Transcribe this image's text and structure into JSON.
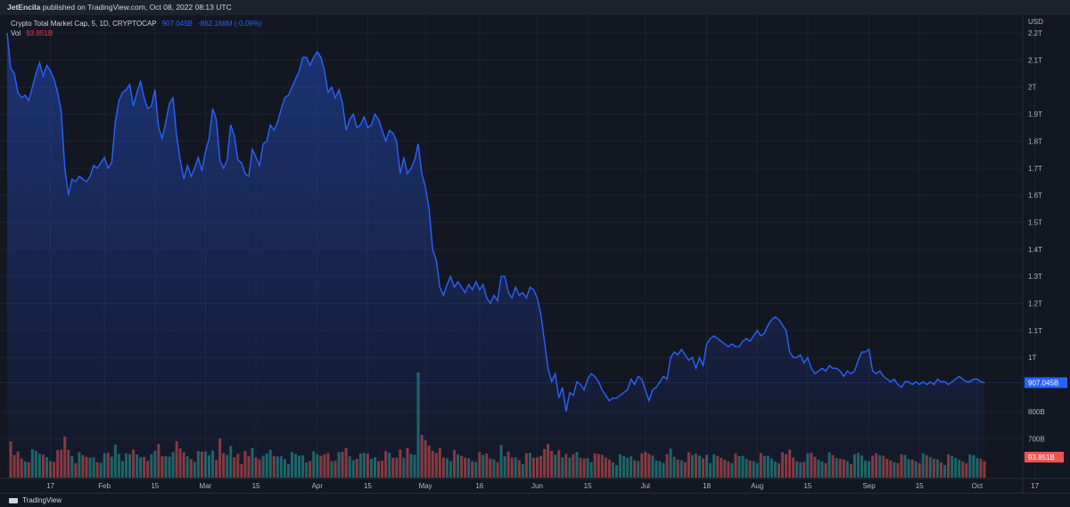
{
  "header": {
    "author": "JetEncila",
    "published_text": "published on TradingView.com, Oct 08, 2022 08:13 UTC"
  },
  "legend": {
    "symbol": "Crypto Total Market Cap, 5, 1D, CRYPTOCAP",
    "price": "907.045B",
    "change": "-862.166M (-0.09%)",
    "vol_label": "Vol",
    "vol_value": "93.851B"
  },
  "footer": {
    "brand": "TradingView"
  },
  "colors": {
    "line": "#2962ff",
    "up": "#26a69a",
    "down": "#ef5350",
    "bg": "#131722",
    "grid": "#1e222d",
    "axis_text": "#b2b5be"
  },
  "chart_data": {
    "type": "area",
    "currency": "USD",
    "y_ticks": [
      "2.3T",
      "2.2T",
      "2.1T",
      "2T",
      "1.9T",
      "1.8T",
      "1.7T",
      "1.6T",
      "1.5T",
      "1.4T",
      "1.3T",
      "1.2T",
      "1.1T",
      "1T",
      "800B",
      "700B"
    ],
    "ylim": [
      0.7,
      2.33
    ],
    "x_ticks": [
      {
        "label": "17",
        "day": 0
      },
      {
        "label": "Feb",
        "day": 15
      },
      {
        "label": "15",
        "day": 29
      },
      {
        "label": "Mar",
        "day": 43
      },
      {
        "label": "15",
        "day": 57
      },
      {
        "label": "Apr",
        "day": 74
      },
      {
        "label": "15",
        "day": 88
      },
      {
        "label": "May",
        "day": 104
      },
      {
        "label": "16",
        "day": 119
      },
      {
        "label": "Jun",
        "day": 135
      },
      {
        "label": "15",
        "day": 149
      },
      {
        "label": "Jul",
        "day": 165
      },
      {
        "label": "18",
        "day": 182
      },
      {
        "label": "Aug",
        "day": 196
      },
      {
        "label": "15",
        "day": 210
      },
      {
        "label": "Sep",
        "day": 227
      },
      {
        "label": "15",
        "day": 241
      },
      {
        "label": "Oct",
        "day": 257
      },
      {
        "label": "17",
        "day": 273
      }
    ],
    "xlim": [
      -12,
      278
    ],
    "last_price_label": "907.045B",
    "last_price": 0.907,
    "last_volume_label": "93.851B",
    "series": [
      {
        "day": -12,
        "v": 2.2
      },
      {
        "day": -11,
        "v": 2.07
      },
      {
        "day": -10,
        "v": 2.05
      },
      {
        "day": -9,
        "v": 1.98
      },
      {
        "day": -8,
        "v": 1.96
      },
      {
        "day": -7,
        "v": 1.97
      },
      {
        "day": -6,
        "v": 1.95
      },
      {
        "day": -5,
        "v": 2.0
      },
      {
        "day": -4,
        "v": 2.05
      },
      {
        "day": -3,
        "v": 2.09
      },
      {
        "day": -2,
        "v": 2.04
      },
      {
        "day": -1,
        "v": 2.08
      },
      {
        "day": 0,
        "v": 2.06
      },
      {
        "day": 1,
        "v": 2.03
      },
      {
        "day": 2,
        "v": 1.98
      },
      {
        "day": 3,
        "v": 1.91
      },
      {
        "day": 4,
        "v": 1.7
      },
      {
        "day": 5,
        "v": 1.6
      },
      {
        "day": 6,
        "v": 1.66
      },
      {
        "day": 7,
        "v": 1.65
      },
      {
        "day": 8,
        "v": 1.67
      },
      {
        "day": 9,
        "v": 1.66
      },
      {
        "day": 10,
        "v": 1.65
      },
      {
        "day": 11,
        "v": 1.67
      },
      {
        "day": 12,
        "v": 1.71
      },
      {
        "day": 13,
        "v": 1.7
      },
      {
        "day": 14,
        "v": 1.72
      },
      {
        "day": 15,
        "v": 1.74
      },
      {
        "day": 16,
        "v": 1.7
      },
      {
        "day": 17,
        "v": 1.72
      },
      {
        "day": 18,
        "v": 1.87
      },
      {
        "day": 19,
        "v": 1.95
      },
      {
        "day": 20,
        "v": 1.98
      },
      {
        "day": 21,
        "v": 1.99
      },
      {
        "day": 22,
        "v": 2.01
      },
      {
        "day": 23,
        "v": 1.93
      },
      {
        "day": 24,
        "v": 1.98
      },
      {
        "day": 25,
        "v": 2.02
      },
      {
        "day": 26,
        "v": 1.96
      },
      {
        "day": 27,
        "v": 1.92
      },
      {
        "day": 28,
        "v": 1.93
      },
      {
        "day": 29,
        "v": 1.99
      },
      {
        "day": 30,
        "v": 1.85
      },
      {
        "day": 31,
        "v": 1.81
      },
      {
        "day": 32,
        "v": 1.87
      },
      {
        "day": 33,
        "v": 1.94
      },
      {
        "day": 34,
        "v": 1.96
      },
      {
        "day": 35,
        "v": 1.82
      },
      {
        "day": 36,
        "v": 1.73
      },
      {
        "day": 37,
        "v": 1.66
      },
      {
        "day": 38,
        "v": 1.71
      },
      {
        "day": 39,
        "v": 1.67
      },
      {
        "day": 40,
        "v": 1.7
      },
      {
        "day": 41,
        "v": 1.74
      },
      {
        "day": 42,
        "v": 1.69
      },
      {
        "day": 43,
        "v": 1.76
      },
      {
        "day": 44,
        "v": 1.81
      },
      {
        "day": 45,
        "v": 1.92
      },
      {
        "day": 46,
        "v": 1.88
      },
      {
        "day": 47,
        "v": 1.73
      },
      {
        "day": 48,
        "v": 1.7
      },
      {
        "day": 49,
        "v": 1.73
      },
      {
        "day": 50,
        "v": 1.86
      },
      {
        "day": 51,
        "v": 1.82
      },
      {
        "day": 52,
        "v": 1.73
      },
      {
        "day": 53,
        "v": 1.72
      },
      {
        "day": 54,
        "v": 1.68
      },
      {
        "day": 55,
        "v": 1.67
      },
      {
        "day": 56,
        "v": 1.77
      },
      {
        "day": 57,
        "v": 1.74
      },
      {
        "day": 58,
        "v": 1.71
      },
      {
        "day": 59,
        "v": 1.79
      },
      {
        "day": 60,
        "v": 1.8
      },
      {
        "day": 61,
        "v": 1.86
      },
      {
        "day": 62,
        "v": 1.84
      },
      {
        "day": 63,
        "v": 1.87
      },
      {
        "day": 64,
        "v": 1.92
      },
      {
        "day": 65,
        "v": 1.96
      },
      {
        "day": 66,
        "v": 1.97
      },
      {
        "day": 67,
        "v": 2.0
      },
      {
        "day": 68,
        "v": 2.03
      },
      {
        "day": 69,
        "v": 2.06
      },
      {
        "day": 70,
        "v": 2.11
      },
      {
        "day": 71,
        "v": 2.11
      },
      {
        "day": 72,
        "v": 2.08
      },
      {
        "day": 73,
        "v": 2.11
      },
      {
        "day": 74,
        "v": 2.13
      },
      {
        "day": 75,
        "v": 2.11
      },
      {
        "day": 76,
        "v": 2.06
      },
      {
        "day": 77,
        "v": 1.98
      },
      {
        "day": 78,
        "v": 2.0
      },
      {
        "day": 79,
        "v": 1.96
      },
      {
        "day": 80,
        "v": 1.99
      },
      {
        "day": 81,
        "v": 1.94
      },
      {
        "day": 82,
        "v": 1.84
      },
      {
        "day": 83,
        "v": 1.88
      },
      {
        "day": 84,
        "v": 1.9
      },
      {
        "day": 85,
        "v": 1.85
      },
      {
        "day": 86,
        "v": 1.86
      },
      {
        "day": 87,
        "v": 1.89
      },
      {
        "day": 88,
        "v": 1.85
      },
      {
        "day": 89,
        "v": 1.86
      },
      {
        "day": 90,
        "v": 1.9
      },
      {
        "day": 91,
        "v": 1.88
      },
      {
        "day": 92,
        "v": 1.84
      },
      {
        "day": 93,
        "v": 1.8
      },
      {
        "day": 94,
        "v": 1.84
      },
      {
        "day": 95,
        "v": 1.83
      },
      {
        "day": 96,
        "v": 1.8
      },
      {
        "day": 97,
        "v": 1.68
      },
      {
        "day": 98,
        "v": 1.74
      },
      {
        "day": 99,
        "v": 1.68
      },
      {
        "day": 100,
        "v": 1.7
      },
      {
        "day": 101,
        "v": 1.73
      },
      {
        "day": 102,
        "v": 1.79
      },
      {
        "day": 103,
        "v": 1.68
      },
      {
        "day": 104,
        "v": 1.63
      },
      {
        "day": 105,
        "v": 1.55
      },
      {
        "day": 106,
        "v": 1.4
      },
      {
        "day": 107,
        "v": 1.36
      },
      {
        "day": 108,
        "v": 1.26
      },
      {
        "day": 109,
        "v": 1.23
      },
      {
        "day": 110,
        "v": 1.27
      },
      {
        "day": 111,
        "v": 1.3
      },
      {
        "day": 112,
        "v": 1.26
      },
      {
        "day": 113,
        "v": 1.28
      },
      {
        "day": 114,
        "v": 1.26
      },
      {
        "day": 115,
        "v": 1.24
      },
      {
        "day": 116,
        "v": 1.27
      },
      {
        "day": 117,
        "v": 1.25
      },
      {
        "day": 118,
        "v": 1.28
      },
      {
        "day": 119,
        "v": 1.25
      },
      {
        "day": 120,
        "v": 1.27
      },
      {
        "day": 121,
        "v": 1.22
      },
      {
        "day": 122,
        "v": 1.2
      },
      {
        "day": 123,
        "v": 1.23
      },
      {
        "day": 124,
        "v": 1.21
      },
      {
        "day": 125,
        "v": 1.3
      },
      {
        "day": 126,
        "v": 1.3
      },
      {
        "day": 127,
        "v": 1.24
      },
      {
        "day": 128,
        "v": 1.22
      },
      {
        "day": 129,
        "v": 1.26
      },
      {
        "day": 130,
        "v": 1.23
      },
      {
        "day": 131,
        "v": 1.24
      },
      {
        "day": 132,
        "v": 1.22
      },
      {
        "day": 133,
        "v": 1.26
      },
      {
        "day": 134,
        "v": 1.25
      },
      {
        "day": 135,
        "v": 1.22
      },
      {
        "day": 136,
        "v": 1.16
      },
      {
        "day": 137,
        "v": 1.06
      },
      {
        "day": 138,
        "v": 0.96
      },
      {
        "day": 139,
        "v": 0.91
      },
      {
        "day": 140,
        "v": 0.94
      },
      {
        "day": 141,
        "v": 0.85
      },
      {
        "day": 142,
        "v": 0.89
      },
      {
        "day": 143,
        "v": 0.8
      },
      {
        "day": 144,
        "v": 0.87
      },
      {
        "day": 145,
        "v": 0.86
      },
      {
        "day": 146,
        "v": 0.91
      },
      {
        "day": 147,
        "v": 0.9
      },
      {
        "day": 148,
        "v": 0.88
      },
      {
        "day": 149,
        "v": 0.92
      },
      {
        "day": 150,
        "v": 0.94
      },
      {
        "day": 151,
        "v": 0.93
      },
      {
        "day": 152,
        "v": 0.91
      },
      {
        "day": 153,
        "v": 0.88
      },
      {
        "day": 154,
        "v": 0.86
      },
      {
        "day": 155,
        "v": 0.84
      },
      {
        "day": 156,
        "v": 0.85
      },
      {
        "day": 157,
        "v": 0.85
      },
      {
        "day": 158,
        "v": 0.86
      },
      {
        "day": 159,
        "v": 0.87
      },
      {
        "day": 160,
        "v": 0.88
      },
      {
        "day": 161,
        "v": 0.92
      },
      {
        "day": 162,
        "v": 0.9
      },
      {
        "day": 163,
        "v": 0.93
      },
      {
        "day": 164,
        "v": 0.92
      },
      {
        "day": 165,
        "v": 0.88
      },
      {
        "day": 166,
        "v": 0.84
      },
      {
        "day": 167,
        "v": 0.88
      },
      {
        "day": 168,
        "v": 0.89
      },
      {
        "day": 169,
        "v": 0.91
      },
      {
        "day": 170,
        "v": 0.93
      },
      {
        "day": 171,
        "v": 0.92
      },
      {
        "day": 172,
        "v": 1.0
      },
      {
        "day": 173,
        "v": 1.02
      },
      {
        "day": 174,
        "v": 1.01
      },
      {
        "day": 175,
        "v": 1.03
      },
      {
        "day": 176,
        "v": 1.01
      },
      {
        "day": 177,
        "v": 0.99
      },
      {
        "day": 178,
        "v": 1.0
      },
      {
        "day": 179,
        "v": 0.96
      },
      {
        "day": 180,
        "v": 1.0
      },
      {
        "day": 181,
        "v": 0.97
      },
      {
        "day": 182,
        "v": 1.05
      },
      {
        "day": 183,
        "v": 1.07
      },
      {
        "day": 184,
        "v": 1.08
      },
      {
        "day": 185,
        "v": 1.07
      },
      {
        "day": 186,
        "v": 1.06
      },
      {
        "day": 187,
        "v": 1.05
      },
      {
        "day": 188,
        "v": 1.04
      },
      {
        "day": 189,
        "v": 1.05
      },
      {
        "day": 190,
        "v": 1.04
      },
      {
        "day": 191,
        "v": 1.04
      },
      {
        "day": 192,
        "v": 1.06
      },
      {
        "day": 193,
        "v": 1.07
      },
      {
        "day": 194,
        "v": 1.06
      },
      {
        "day": 195,
        "v": 1.08
      },
      {
        "day": 196,
        "v": 1.1
      },
      {
        "day": 197,
        "v": 1.08
      },
      {
        "day": 198,
        "v": 1.09
      },
      {
        "day": 199,
        "v": 1.12
      },
      {
        "day": 200,
        "v": 1.14
      },
      {
        "day": 201,
        "v": 1.15
      },
      {
        "day": 202,
        "v": 1.14
      },
      {
        "day": 203,
        "v": 1.12
      },
      {
        "day": 204,
        "v": 1.1
      },
      {
        "day": 205,
        "v": 1.02
      },
      {
        "day": 206,
        "v": 1.0
      },
      {
        "day": 207,
        "v": 1.0
      },
      {
        "day": 208,
        "v": 1.01
      },
      {
        "day": 209,
        "v": 0.98
      },
      {
        "day": 210,
        "v": 1.0
      },
      {
        "day": 211,
        "v": 0.96
      },
      {
        "day": 212,
        "v": 0.94
      },
      {
        "day": 213,
        "v": 0.95
      },
      {
        "day": 214,
        "v": 0.96
      },
      {
        "day": 215,
        "v": 0.95
      },
      {
        "day": 216,
        "v": 0.97
      },
      {
        "day": 217,
        "v": 0.96
      },
      {
        "day": 218,
        "v": 0.96
      },
      {
        "day": 219,
        "v": 0.95
      },
      {
        "day": 220,
        "v": 0.93
      },
      {
        "day": 221,
        "v": 0.95
      },
      {
        "day": 222,
        "v": 0.94
      },
      {
        "day": 223,
        "v": 0.95
      },
      {
        "day": 224,
        "v": 0.99
      },
      {
        "day": 225,
        "v": 1.02
      },
      {
        "day": 226,
        "v": 1.02
      },
      {
        "day": 227,
        "v": 1.03
      },
      {
        "day": 228,
        "v": 0.95
      },
      {
        "day": 229,
        "v": 0.94
      },
      {
        "day": 230,
        "v": 0.95
      },
      {
        "day": 231,
        "v": 0.93
      },
      {
        "day": 232,
        "v": 0.92
      },
      {
        "day": 233,
        "v": 0.91
      },
      {
        "day": 234,
        "v": 0.92
      },
      {
        "day": 235,
        "v": 0.9
      },
      {
        "day": 236,
        "v": 0.89
      },
      {
        "day": 237,
        "v": 0.91
      },
      {
        "day": 238,
        "v": 0.91
      },
      {
        "day": 239,
        "v": 0.9
      },
      {
        "day": 240,
        "v": 0.91
      },
      {
        "day": 241,
        "v": 0.9
      },
      {
        "day": 242,
        "v": 0.91
      },
      {
        "day": 243,
        "v": 0.9
      },
      {
        "day": 244,
        "v": 0.91
      },
      {
        "day": 245,
        "v": 0.9
      },
      {
        "day": 246,
        "v": 0.92
      },
      {
        "day": 247,
        "v": 0.91
      },
      {
        "day": 248,
        "v": 0.91
      },
      {
        "day": 249,
        "v": 0.9
      },
      {
        "day": 250,
        "v": 0.91
      },
      {
        "day": 251,
        "v": 0.92
      },
      {
        "day": 252,
        "v": 0.93
      },
      {
        "day": 253,
        "v": 0.92
      },
      {
        "day": 254,
        "v": 0.91
      },
      {
        "day": 255,
        "v": 0.91
      },
      {
        "day": 256,
        "v": 0.92
      },
      {
        "day": 257,
        "v": 0.92
      },
      {
        "day": 258,
        "v": 0.91
      },
      {
        "day": 259,
        "v": 0.907
      }
    ]
  }
}
